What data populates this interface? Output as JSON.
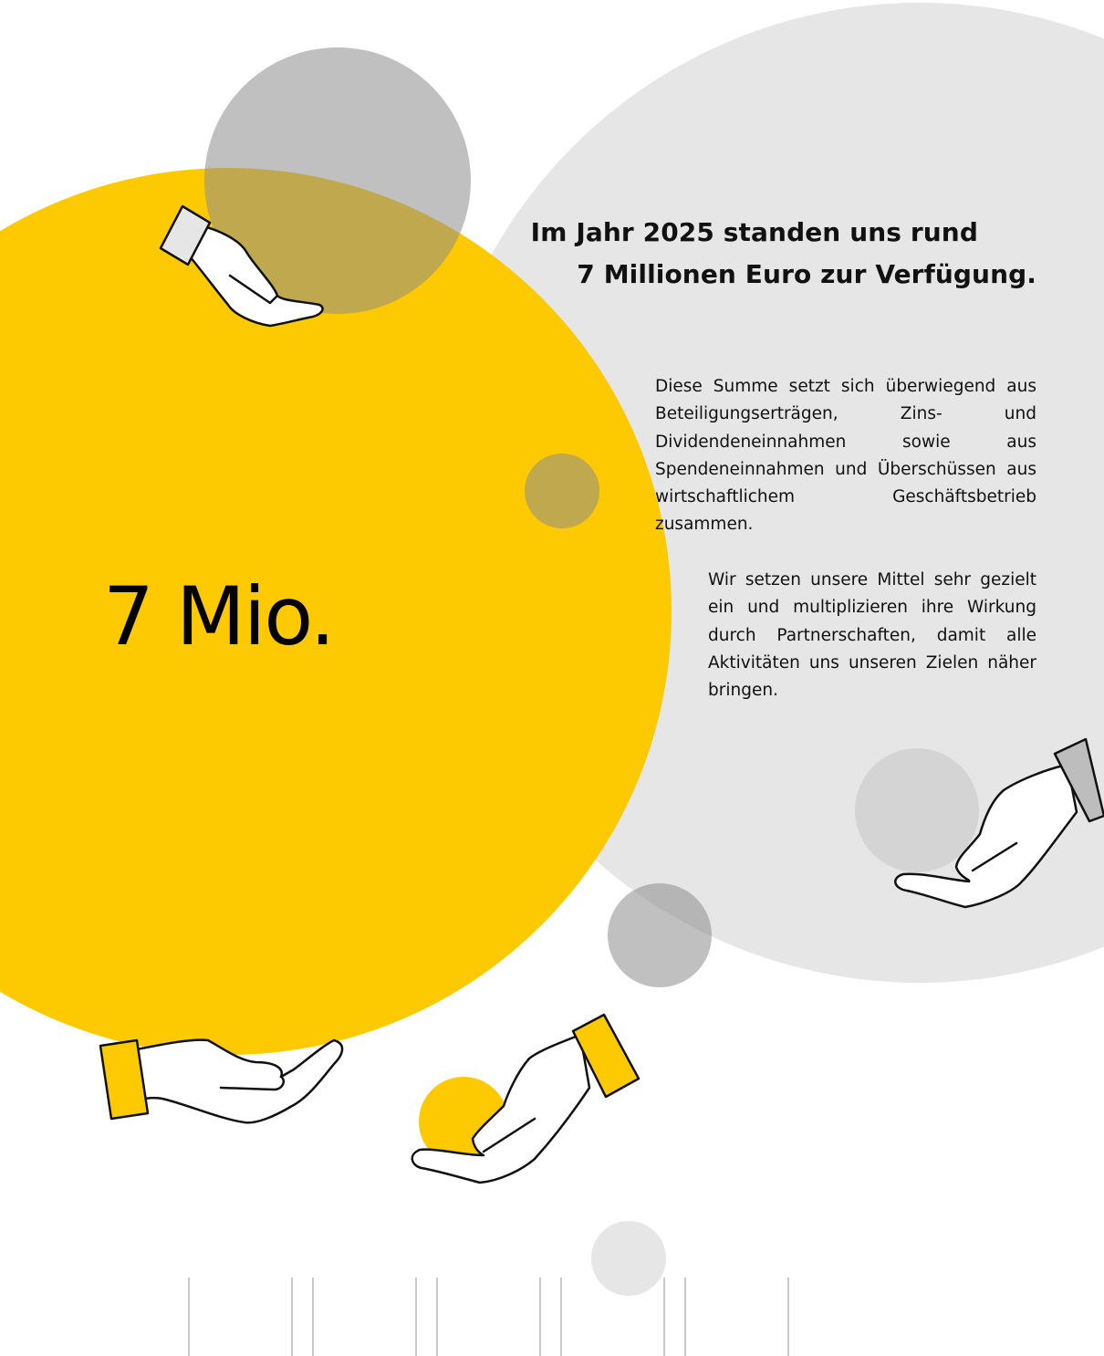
{
  "headline": {
    "line1": "Im Jahr 2025 standen uns rund",
    "line2": "7 Millionen Euro zur Verfügung."
  },
  "paragraphs": {
    "p1": "Diese Summe setzt sich überwiegend aus Beteiligungserträgen, Zins- und Dividendeneinnahmen sowie aus Spendeneinnahmen und Überschüssen aus wirtschaftlichem Geschäftsbetrieb zusammen.",
    "p2": "Wir setzen unsere Mittel sehr gezielt ein und multiplizieren ihre Wirkung durch Partnerschaften, damit alle Aktivitäten uns unseren Zielen näher bringen."
  },
  "big_number": "7 Mio.",
  "colors": {
    "yellow": "#fdc900",
    "light_gray": "#e6e6e6",
    "mid_gray": "#9a9a9a",
    "text": "#111111"
  },
  "icons": [
    "hand-icon",
    "hand-icon",
    "hand-icon",
    "hand-icon"
  ]
}
